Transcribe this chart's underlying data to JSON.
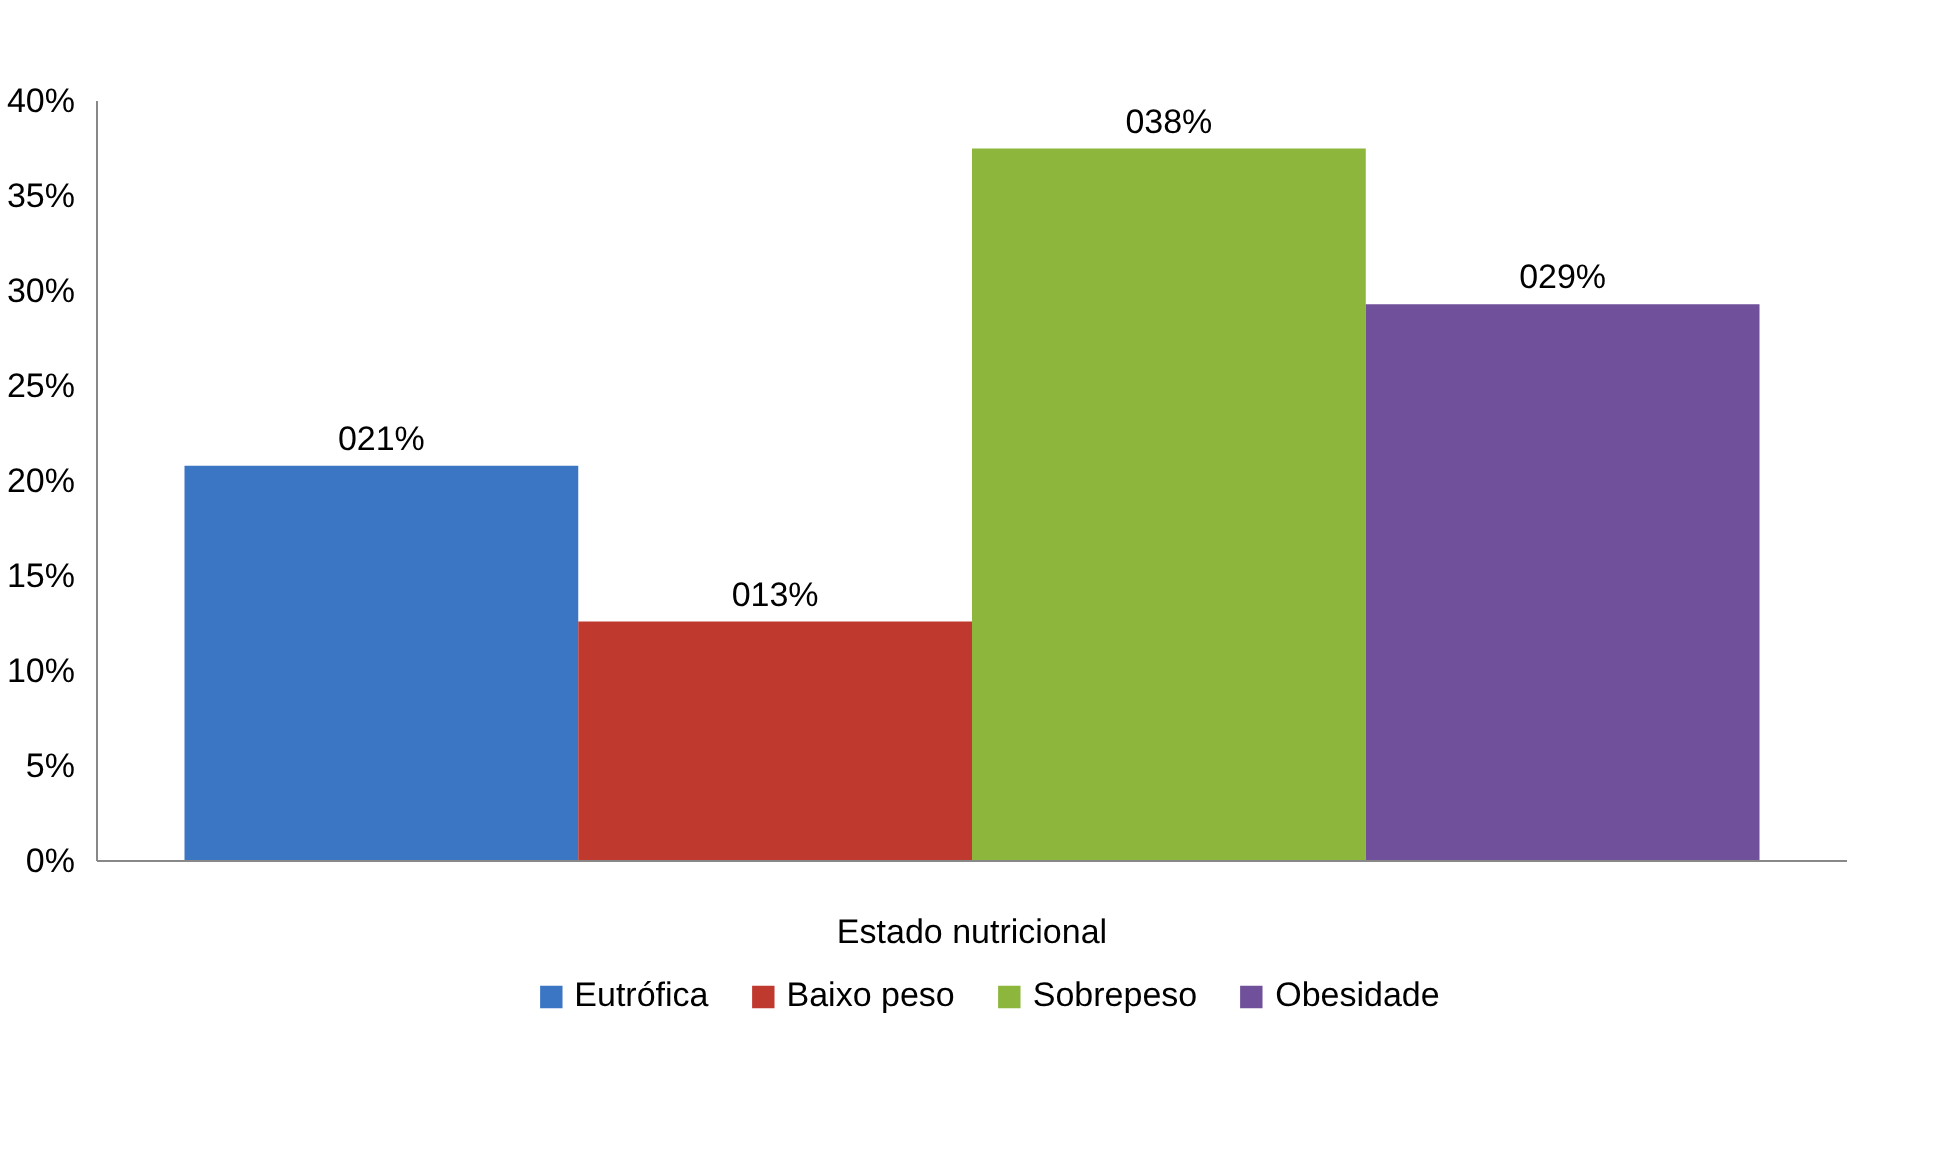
{
  "chart_data": {
    "type": "bar",
    "categories": [
      "Estado nutricional"
    ],
    "series": [
      {
        "name": "Eutrófica",
        "color": "#3a76c4",
        "values": [
          20.8
        ],
        "value_labels": [
          "021%"
        ]
      },
      {
        "name": "Baixo peso",
        "color": "#c0392f",
        "values": [
          12.6
        ],
        "value_labels": [
          "013%"
        ]
      },
      {
        "name": "Sobrepeso",
        "color": "#8cb63c",
        "values": [
          37.5
        ],
        "value_labels": [
          "038%"
        ]
      },
      {
        "name": "Obesidade",
        "color": "#70509a",
        "values": [
          29.3
        ],
        "value_labels": [
          "029%"
        ]
      }
    ],
    "ylim": [
      0,
      40
    ],
    "yticks": [
      {
        "value": 0,
        "label": "0%"
      },
      {
        "value": 5,
        "label": "5%"
      },
      {
        "value": 10,
        "label": "10%"
      },
      {
        "value": 15,
        "label": "15%"
      },
      {
        "value": 20,
        "label": "20%"
      },
      {
        "value": 25,
        "label": "25%"
      },
      {
        "value": 30,
        "label": "30%"
      },
      {
        "value": 35,
        "label": "35%"
      },
      {
        "value": 40,
        "label": "40%"
      }
    ],
    "grid": false,
    "legend": "bottom"
  }
}
